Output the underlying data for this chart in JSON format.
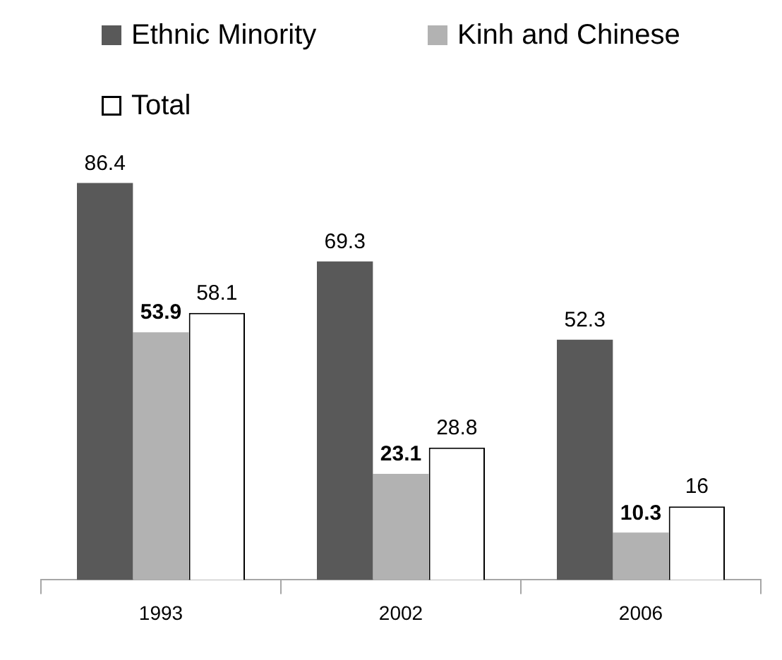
{
  "chart_data": {
    "type": "bar",
    "categories": [
      "1993",
      "2002",
      "2006"
    ],
    "series": [
      {
        "name": "Ethnic Minority",
        "color": "#595959",
        "values": [
          86.4,
          69.3,
          52.3
        ]
      },
      {
        "name": "Kinh and Chinese",
        "color": "#b2b2b2",
        "values": [
          53.9,
          23.1,
          10.3
        ]
      },
      {
        "name": "Total",
        "color": "#ffffff",
        "values": [
          58.1,
          28.8,
          16
        ]
      }
    ],
    "data_labels": true,
    "legend": "top",
    "grid": false
  }
}
